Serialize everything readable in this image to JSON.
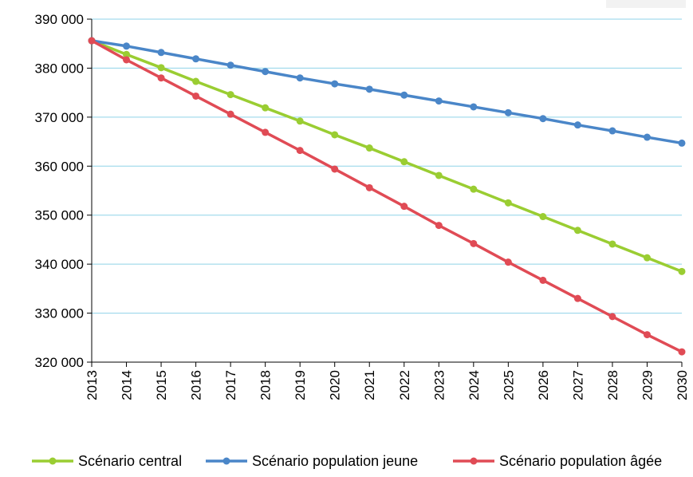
{
  "chart_data": {
    "type": "line",
    "title": "",
    "xlabel": "",
    "ylabel": "",
    "x": [
      "2013",
      "2014",
      "2015",
      "2016",
      "2017",
      "2018",
      "2019",
      "2020",
      "2021",
      "2022",
      "2023",
      "2024",
      "2025",
      "2026",
      "2027",
      "2028",
      "2029",
      "2030"
    ],
    "ylim": [
      320000,
      390000
    ],
    "yticks": [
      320000,
      330000,
      340000,
      350000,
      360000,
      370000,
      380000,
      390000
    ],
    "ytick_labels": [
      "320 000",
      "330 000",
      "340 000",
      "350 000",
      "360 000",
      "370 000",
      "380 000",
      "390 000"
    ],
    "grid": "horizontal",
    "legend_position": "bottom",
    "series": [
      {
        "name": "Scénario central",
        "color": "#9acd32",
        "values": [
          385600,
          382800,
          380100,
          377300,
          374600,
          371900,
          369200,
          366400,
          363700,
          360900,
          358100,
          355300,
          352500,
          349700,
          346900,
          344100,
          341300,
          338500
        ]
      },
      {
        "name": "Scénario population jeune",
        "color": "#4a86c8",
        "values": [
          385600,
          384500,
          383200,
          381900,
          380600,
          379300,
          378000,
          376800,
          375700,
          374500,
          373300,
          372100,
          370900,
          369700,
          368400,
          367200,
          365900,
          364700
        ]
      },
      {
        "name": "Scénario population âgée",
        "color": "#e04b55",
        "values": [
          385600,
          381700,
          378000,
          374300,
          370600,
          366900,
          363200,
          359400,
          355600,
          351800,
          347900,
          344200,
          340400,
          336700,
          333000,
          329300,
          325600,
          322100
        ]
      }
    ]
  }
}
